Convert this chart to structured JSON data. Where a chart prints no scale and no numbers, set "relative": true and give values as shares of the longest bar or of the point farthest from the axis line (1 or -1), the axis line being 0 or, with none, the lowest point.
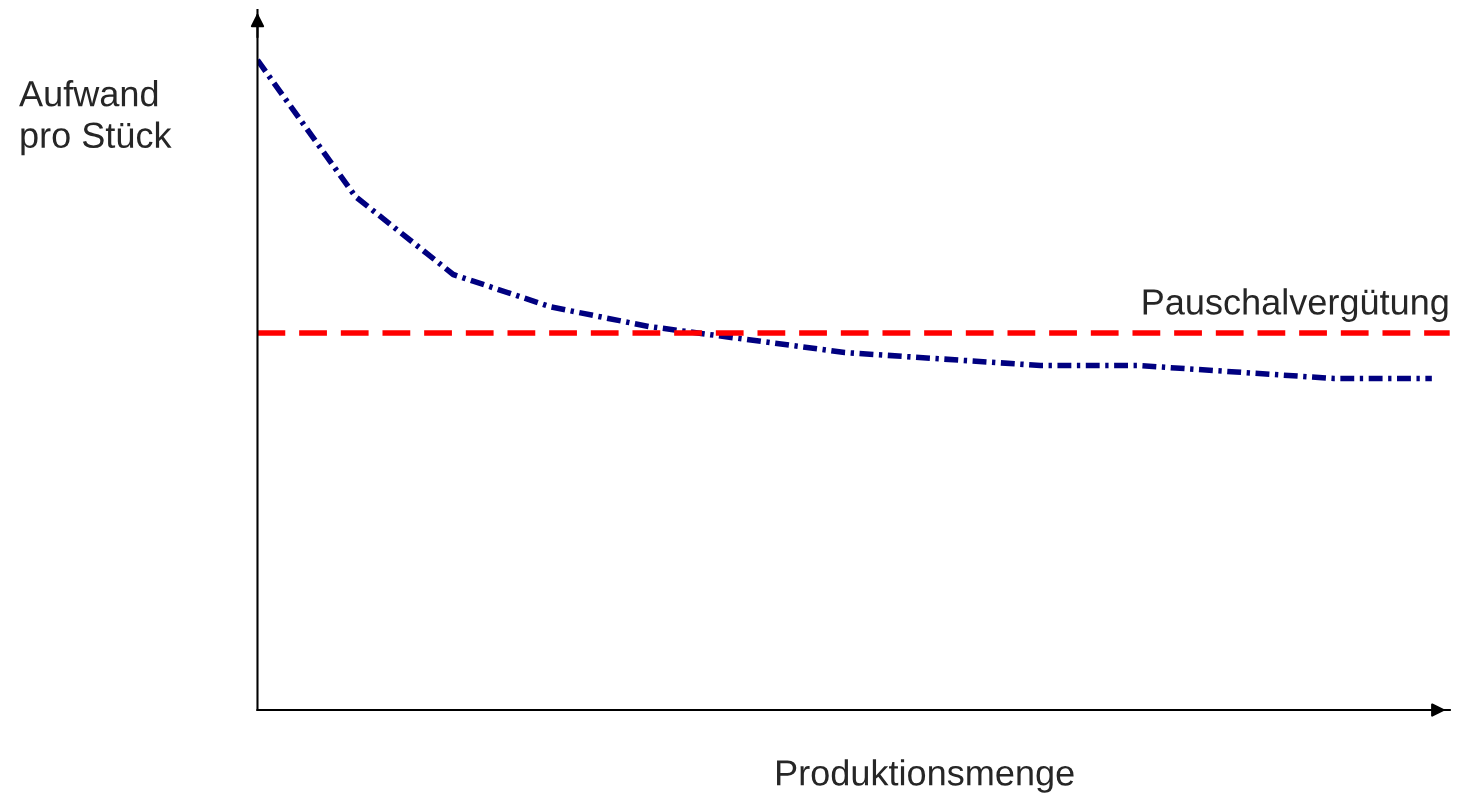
{
  "chart_data": {
    "type": "line",
    "relative": true,
    "xlabel": "Produktionsmenge",
    "ylabel": "Aufwand\npro Stück",
    "categories": [
      null,
      null,
      null,
      null,
      null,
      null,
      null,
      null,
      null,
      null,
      null,
      null,
      null
    ],
    "series": [
      {
        "color": "#000080",
        "line_style": "dashdot",
        "values": [
          1.0,
          0.79,
          0.67,
          0.62,
          0.59,
          0.57,
          0.55,
          0.54,
          0.53,
          0.53,
          0.52,
          0.51,
          0.51
        ]
      }
    ],
    "ref_lines": [
      {
        "axis": "y",
        "value": 0.58,
        "label": "Pauschalvergütung",
        "color": "#ff0000",
        "line_style": "dashed"
      }
    ],
    "legend": false
  }
}
